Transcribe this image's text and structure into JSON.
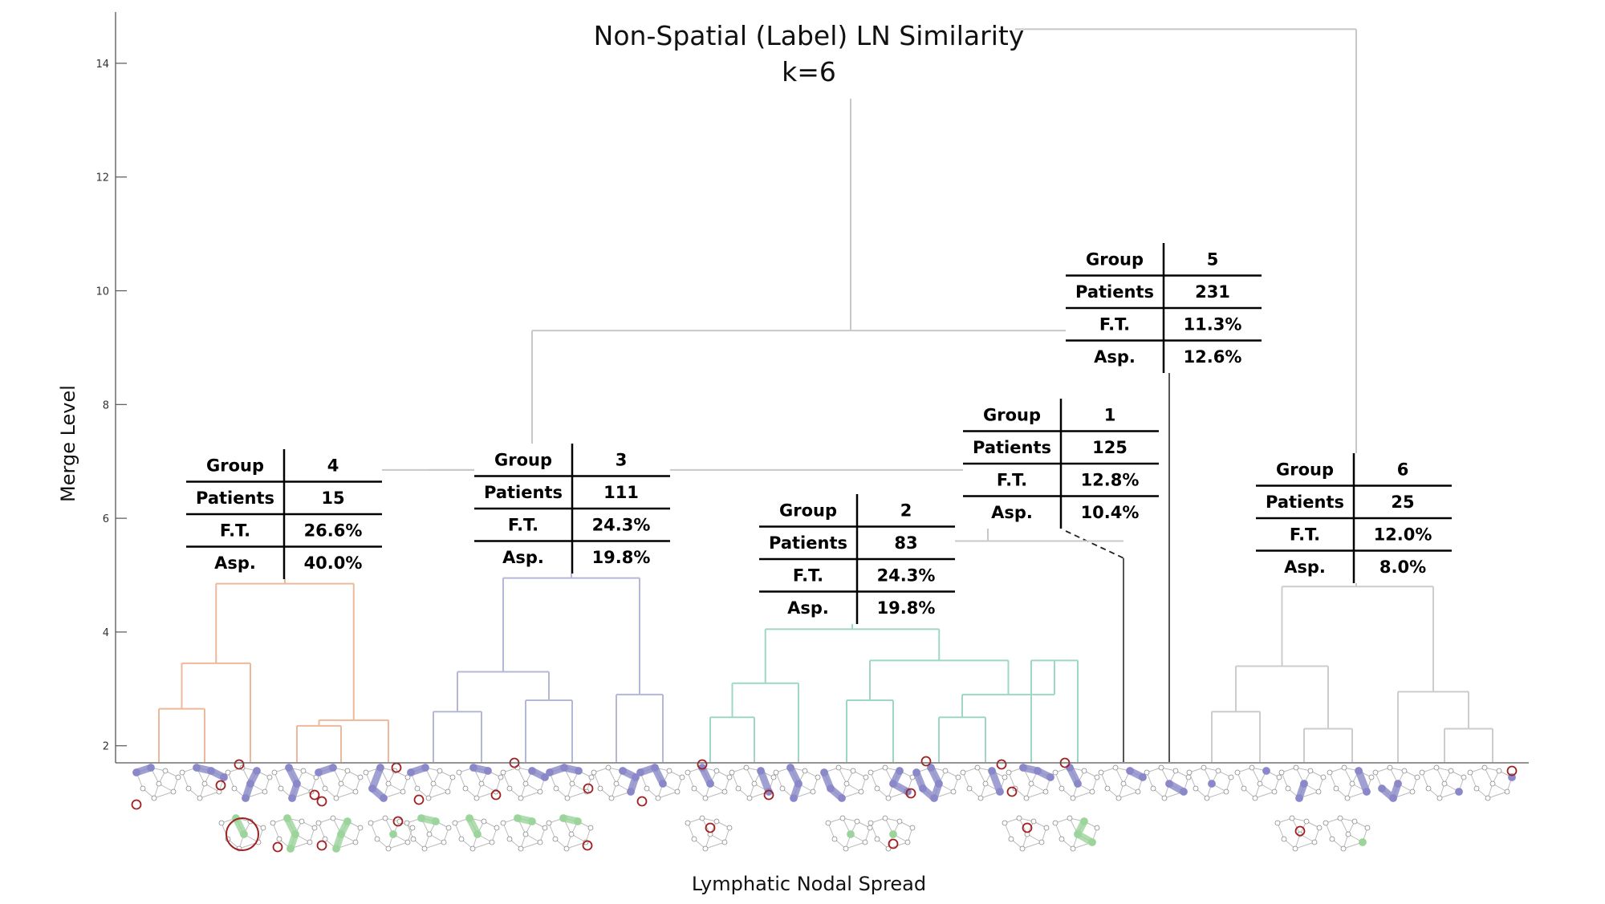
{
  "chart_data": {
    "type": "dendrogram",
    "title": "Non-Spatial (Label) LN Similarity",
    "subtitle": "k=6",
    "xlabel": "Lymphatic Nodal Spread",
    "ylabel": "Merge Level",
    "ylim": [
      1.7,
      15
    ],
    "yticks": [
      2,
      4,
      6,
      8,
      10,
      12,
      14
    ],
    "colors": {
      "group4": "#eeb89a",
      "group3": "#b4b8d6",
      "group2": "#9ed8c4",
      "group6": "#cccccc",
      "upper": "#c8c8c8",
      "node": "#8a88c8",
      "lymph-node": "#9bd59b",
      "marker": "#a02020"
    },
    "table_headers": {
      "group": "Group",
      "patients": "Patients",
      "ft": "F.T.",
      "asp": "Asp."
    },
    "groups": [
      {
        "group": "4",
        "patients": "15",
        "ft": "26.6%",
        "asp": "40.0%",
        "merge_level": 4.85
      },
      {
        "group": "3",
        "patients": "111",
        "ft": "24.3%",
        "asp": "19.8%",
        "merge_level": 4.95
      },
      {
        "group": "2",
        "patients": "83",
        "ft": "24.3%",
        "asp": "19.8%",
        "merge_level": 4.05
      },
      {
        "group": "1",
        "patients": "125",
        "ft": "12.8%",
        "asp": "10.4%",
        "merge_level": 5.3
      },
      {
        "group": "5",
        "patients": "231",
        "ft": "11.3%",
        "asp": "12.6%",
        "merge_level": 9.5
      },
      {
        "group": "6",
        "patients": "25",
        "ft": "12.0%",
        "asp": "8.0%",
        "merge_level": 4.8
      }
    ],
    "upper_merges": [
      {
        "joins": [
          "4",
          "3",
          "2",
          "1"
        ],
        "level": 5.6
      },
      {
        "joins": [
          "4-3-2-1",
          "5"
        ],
        "level": 9.3
      },
      {
        "joins": [
          "4-3-2-1-5",
          "6"
        ],
        "level": 14.6
      }
    ]
  }
}
